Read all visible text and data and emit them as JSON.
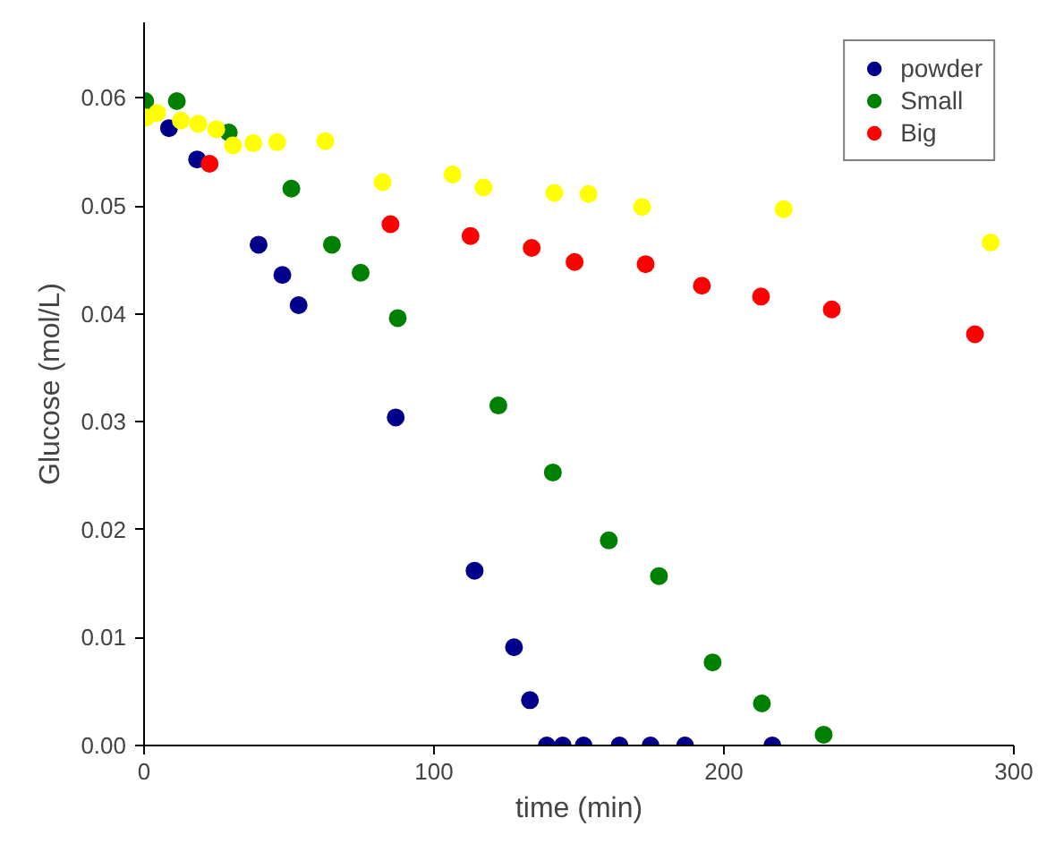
{
  "chart_data": {
    "type": "scatter",
    "xlabel": "time (min)",
    "ylabel": "Glucose (mol/L)",
    "xlim": [
      0,
      300
    ],
    "xticks": [
      0,
      100,
      200,
      300
    ],
    "ylim": [
      0,
      0.067
    ],
    "yticks": [
      {
        "value": 0,
        "label": "0.00"
      },
      {
        "value": 0.01,
        "label": "0.01"
      },
      {
        "value": 0.02,
        "label": "0.02"
      },
      {
        "value": 0.03,
        "label": "0.03"
      },
      {
        "value": 0.04,
        "label": "0.04"
      },
      {
        "value": 0.05,
        "label": "0.05"
      },
      {
        "value": 0.06,
        "label": "0.06"
      }
    ],
    "grid": false,
    "legend": "top right",
    "marker": "circle",
    "series": [
      {
        "name": "powder",
        "color": "#00008b",
        "x": [
          8.6,
          18.3,
          39.5,
          47.7,
          53.3,
          86.8,
          114,
          127.6,
          133.1,
          138.9,
          144.4,
          151.6,
          164,
          174.7,
          186.6,
          216.7
        ],
        "values": [
          0.0572,
          0.0543,
          0.0464,
          0.0436,
          0.0408,
          0.0304,
          0.0162,
          0.0091,
          0.0042,
          0,
          0,
          0,
          0,
          0,
          0,
          0
        ]
      },
      {
        "name": "Small",
        "color": "#008000",
        "x": [
          0.4,
          11.3,
          29.2,
          50.8,
          64.8,
          74.7,
          87.5,
          122.2,
          141,
          160.3,
          177.6,
          196.1,
          213.1,
          234.4
        ],
        "values": [
          0.0597,
          0.0597,
          0.0568,
          0.0516,
          0.0464,
          0.0438,
          0.0396,
          0.0315,
          0.0253,
          0.019,
          0.0157,
          0.0077,
          0.0039,
          0.001
        ]
      },
      {
        "name": "Big",
        "color": "#ff0000",
        "x": [
          22.6,
          85,
          112.6,
          133.7,
          148.5,
          173,
          192.4,
          212.8,
          237.2,
          286.6
        ],
        "values": [
          0.0539,
          0.0483,
          0.0472,
          0.0461,
          0.0448,
          0.0446,
          0.0426,
          0.0416,
          0.0404,
          0.0381
        ]
      },
      {
        "color": "#ffff00",
        "x": [
          0.8,
          4.5,
          12.7,
          18.7,
          24.9,
          30.7,
          37.7,
          45.9,
          62.5,
          82.3,
          106.4,
          117.1,
          141.5,
          153.3,
          171.8,
          220.6,
          292
        ],
        "values": [
          0.0582,
          0.0586,
          0.0579,
          0.0576,
          0.0571,
          0.0556,
          0.0558,
          0.0559,
          0.056,
          0.0522,
          0.0529,
          0.0517,
          0.0512,
          0.0511,
          0.0499,
          0.0497,
          0.0466
        ]
      }
    ]
  }
}
